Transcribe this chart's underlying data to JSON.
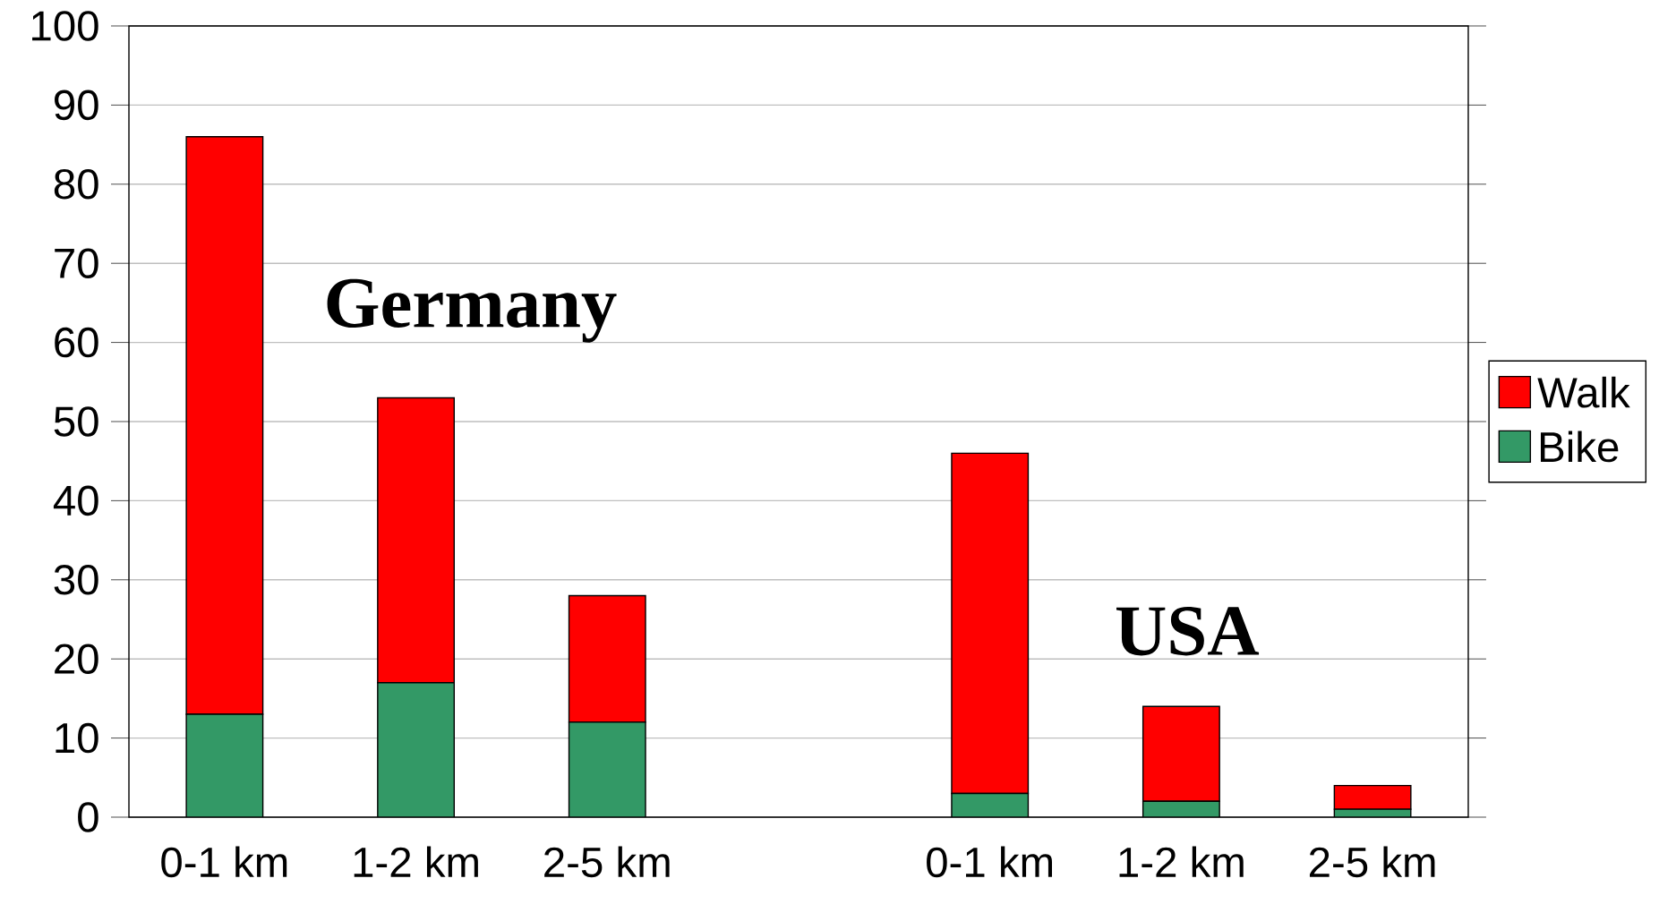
{
  "chart_data": {
    "type": "bar",
    "stacked": true,
    "categories": [
      "0-1 km",
      "1-2 km",
      "2-5 km",
      null,
      "0-1 km",
      "1-2 km",
      "2-5 km"
    ],
    "series": [
      {
        "name": "Bike",
        "color": "#339966",
        "values": [
          13,
          17,
          12,
          null,
          3,
          2,
          1
        ]
      },
      {
        "name": "Walk",
        "color": "#ff0000",
        "values": [
          73,
          36,
          16,
          null,
          43,
          12,
          3
        ]
      }
    ],
    "ylim": [
      0,
      100
    ],
    "yticks": [
      0,
      10,
      20,
      30,
      40,
      50,
      60,
      70,
      80,
      90,
      100
    ],
    "grid": "y",
    "legend": "right",
    "annotations": [
      "Germany",
      "USA"
    ]
  }
}
